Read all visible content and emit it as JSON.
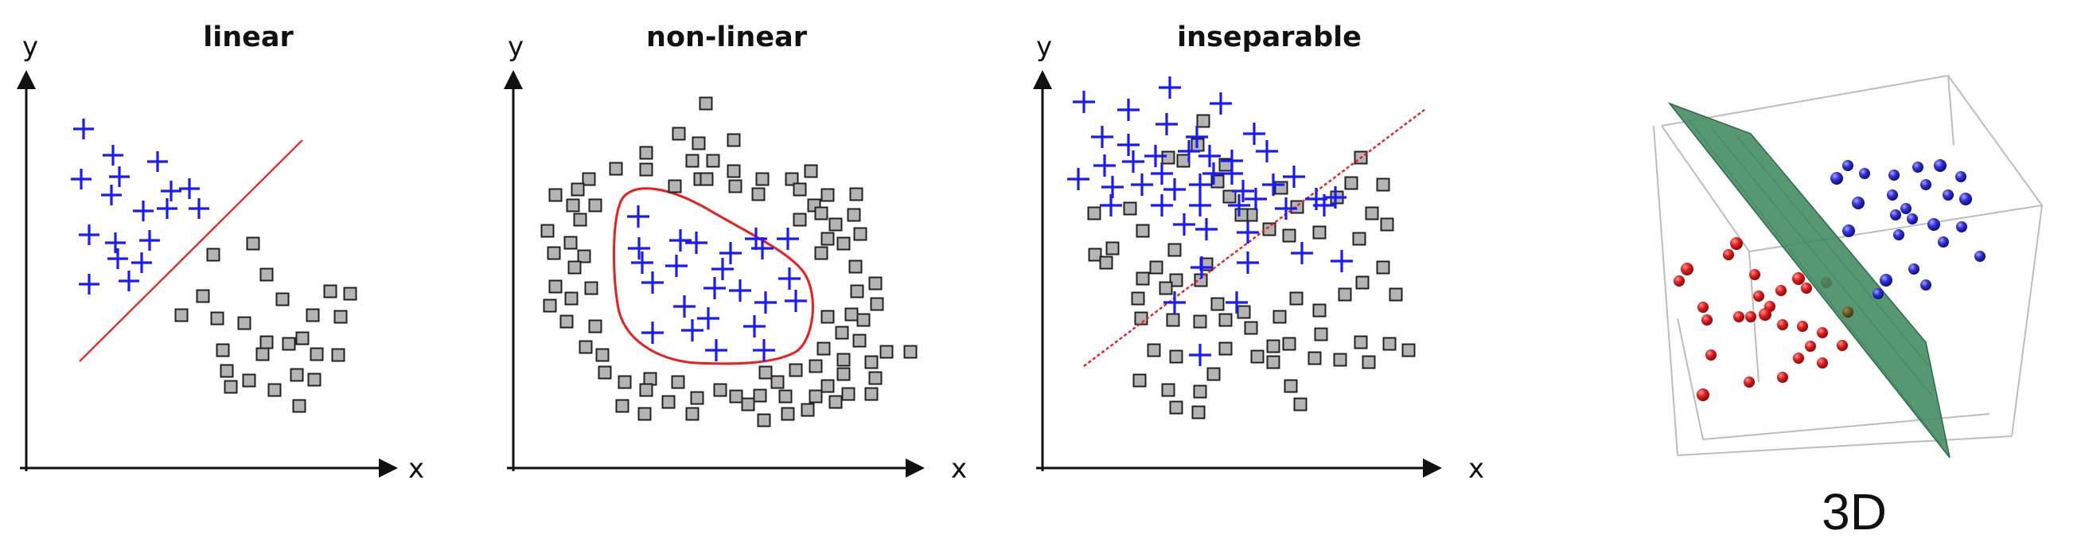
{
  "panels": [
    {
      "title": "linear",
      "x_label": "x",
      "y_label": "y",
      "separator": "straight line",
      "plus_class": {
        "marker": "plus",
        "color": "#1a1aff",
        "count": 18
      },
      "square_class": {
        "marker": "square",
        "color": "#b4b4b4",
        "count": 26
      }
    },
    {
      "title": "non-linear",
      "x_label": "x",
      "y_label": "y",
      "separator": "closed curve",
      "plus_class": {
        "marker": "plus",
        "color": "#1a1aff",
        "count": 20
      },
      "square_class": {
        "marker": "square",
        "color": "#b4b4b4",
        "count": 95
      }
    },
    {
      "title": "inseparable",
      "x_label": "x",
      "y_label": "y",
      "separator": "dotted straight line",
      "plus_class": {
        "marker": "plus",
        "color": "#1a1aff",
        "count": 46
      },
      "square_class": {
        "marker": "square",
        "color": "#b4b4b4",
        "count": 60
      }
    }
  ],
  "panel_3d": {
    "label": "3D",
    "plane_color": "#3d8a5e",
    "red_class": {
      "marker": "sphere",
      "color": "#e11f1f",
      "count": 26
    },
    "blue_class": {
      "marker": "sphere",
      "color": "#2b2bd6",
      "count": 24
    }
  }
}
